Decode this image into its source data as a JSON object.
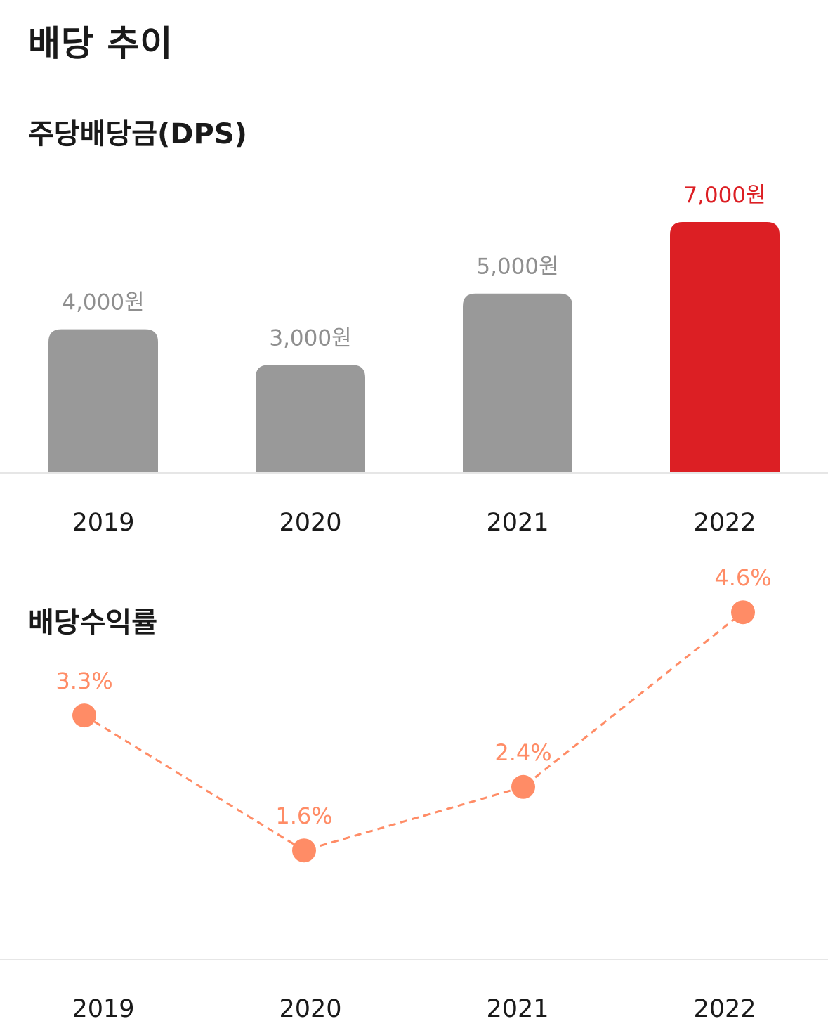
{
  "header": {
    "title": "배당 추이"
  },
  "colors": {
    "bar": "#999999",
    "bar_highlight": "#dc1f24",
    "line": "#ff8c66",
    "axis": "#e6e6e6"
  },
  "chart_data": [
    {
      "type": "bar",
      "title": "주당배당금(DPS)",
      "categories": [
        "2019",
        "2020",
        "2021",
        "2022"
      ],
      "values": [
        4000,
        3000,
        5000,
        7000
      ],
      "data_labels": [
        "4,000원",
        "3,000원",
        "5,000원",
        "7,000원"
      ],
      "highlight_index": 3,
      "grid": false
    },
    {
      "type": "line",
      "title": "배당수익률",
      "categories": [
        "2019",
        "2020",
        "2021",
        "2022"
      ],
      "values": [
        3.3,
        1.6,
        2.4,
        4.6
      ],
      "data_labels": [
        "3.3%",
        "1.6%",
        "2.4%",
        "4.6%"
      ],
      "line_style": "dashed",
      "grid": false
    }
  ]
}
